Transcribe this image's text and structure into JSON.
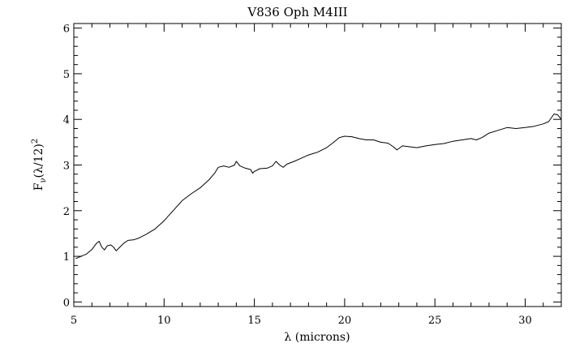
{
  "chart_data": {
    "type": "line",
    "title": "V836 Oph M4III",
    "xlabel": "λ (microns)",
    "ylabel_base": "F",
    "ylabel_sub": "ν",
    "ylabel_rest": "(λ/12)",
    "ylabel_sup": "2",
    "xlim": [
      5,
      32
    ],
    "ylim": [
      -0.1,
      6.1
    ],
    "xticks": [
      5,
      10,
      15,
      20,
      25,
      30
    ],
    "xtick_labels": [
      "5",
      "10",
      "15",
      "20",
      "25",
      "30"
    ],
    "yticks": [
      0,
      1,
      2,
      3,
      4,
      5,
      6
    ],
    "ytick_labels": [
      "0",
      "1",
      "2",
      "3",
      "4",
      "5",
      "6"
    ],
    "grid": false,
    "series": [
      {
        "color": "#000000",
        "points": [
          [
            5.1,
            0.95
          ],
          [
            5.4,
            1.0
          ],
          [
            5.7,
            1.05
          ],
          [
            6.0,
            1.15
          ],
          [
            6.25,
            1.28
          ],
          [
            6.4,
            1.33
          ],
          [
            6.55,
            1.2
          ],
          [
            6.7,
            1.14
          ],
          [
            6.85,
            1.23
          ],
          [
            7.05,
            1.25
          ],
          [
            7.2,
            1.2
          ],
          [
            7.35,
            1.12
          ],
          [
            7.5,
            1.18
          ],
          [
            7.75,
            1.28
          ],
          [
            8.0,
            1.35
          ],
          [
            8.3,
            1.36
          ],
          [
            8.6,
            1.4
          ],
          [
            9.0,
            1.48
          ],
          [
            9.5,
            1.6
          ],
          [
            10.0,
            1.78
          ],
          [
            10.5,
            2.0
          ],
          [
            11.0,
            2.22
          ],
          [
            11.5,
            2.37
          ],
          [
            12.0,
            2.5
          ],
          [
            12.5,
            2.68
          ],
          [
            12.8,
            2.82
          ],
          [
            13.0,
            2.95
          ],
          [
            13.3,
            2.98
          ],
          [
            13.6,
            2.95
          ],
          [
            13.9,
            3.0
          ],
          [
            14.0,
            3.08
          ],
          [
            14.2,
            2.98
          ],
          [
            14.5,
            2.93
          ],
          [
            14.8,
            2.9
          ],
          [
            14.9,
            2.82
          ],
          [
            15.0,
            2.86
          ],
          [
            15.3,
            2.92
          ],
          [
            15.7,
            2.93
          ],
          [
            16.0,
            2.98
          ],
          [
            16.2,
            3.08
          ],
          [
            16.4,
            3.0
          ],
          [
            16.6,
            2.95
          ],
          [
            16.8,
            3.02
          ],
          [
            17.2,
            3.08
          ],
          [
            17.6,
            3.15
          ],
          [
            18.0,
            3.22
          ],
          [
            18.5,
            3.28
          ],
          [
            19.0,
            3.38
          ],
          [
            19.4,
            3.5
          ],
          [
            19.7,
            3.6
          ],
          [
            20.0,
            3.63
          ],
          [
            20.4,
            3.62
          ],
          [
            20.8,
            3.58
          ],
          [
            21.2,
            3.55
          ],
          [
            21.6,
            3.55
          ],
          [
            22.0,
            3.5
          ],
          [
            22.4,
            3.48
          ],
          [
            22.7,
            3.4
          ],
          [
            22.9,
            3.33
          ],
          [
            23.2,
            3.42
          ],
          [
            23.6,
            3.4
          ],
          [
            24.0,
            3.38
          ],
          [
            24.5,
            3.42
          ],
          [
            25.0,
            3.45
          ],
          [
            25.5,
            3.47
          ],
          [
            26.0,
            3.52
          ],
          [
            26.5,
            3.55
          ],
          [
            27.0,
            3.58
          ],
          [
            27.3,
            3.55
          ],
          [
            27.6,
            3.6
          ],
          [
            28.0,
            3.7
          ],
          [
            28.5,
            3.76
          ],
          [
            29.0,
            3.82
          ],
          [
            29.5,
            3.8
          ],
          [
            30.0,
            3.82
          ],
          [
            30.5,
            3.85
          ],
          [
            31.0,
            3.9
          ],
          [
            31.3,
            3.95
          ],
          [
            31.6,
            4.12
          ],
          [
            31.8,
            4.1
          ],
          [
            32.0,
            4.0
          ]
        ]
      }
    ]
  }
}
